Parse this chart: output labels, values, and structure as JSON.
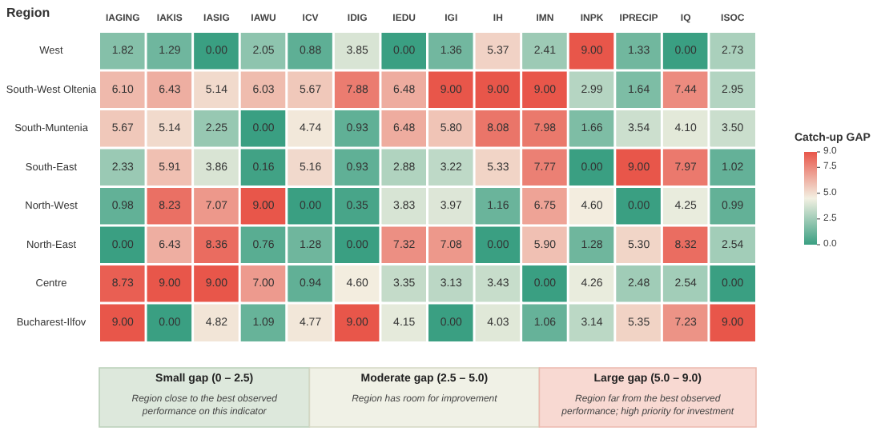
{
  "chart_data": {
    "type": "heatmap",
    "ylabel": "Region",
    "clabel": "Catch-up GAP",
    "categories": [
      "IAGING",
      "IAKIS",
      "IASIG",
      "IAWU",
      "ICV",
      "IDIG",
      "IEDU",
      "IGI",
      "IH",
      "IMN",
      "INPK",
      "IPRECIP",
      "IQ",
      "ISOC"
    ],
    "y_categories": [
      "West",
      "South-West Oltenia",
      "South-Muntenia",
      "South-East",
      "North-West",
      "North-East",
      "Centre",
      "Bucharest-Ilfov"
    ],
    "cells": [
      [
        1.82,
        1.29,
        0.0,
        2.05,
        0.88,
        3.85,
        0.0,
        1.36,
        5.37,
        2.41,
        9.0,
        1.33,
        0.0,
        2.73
      ],
      [
        6.1,
        6.43,
        5.14,
        6.03,
        5.67,
        7.88,
        6.48,
        9.0,
        9.0,
        9.0,
        2.99,
        1.64,
        7.44,
        2.95
      ],
      [
        5.67,
        5.14,
        2.25,
        0.0,
        4.74,
        0.93,
        6.48,
        5.8,
        8.08,
        7.98,
        1.66,
        3.54,
        4.1,
        3.5
      ],
      [
        2.33,
        5.91,
        3.86,
        0.16,
        5.16,
        0.93,
        2.88,
        3.22,
        5.33,
        7.77,
        0.0,
        9.0,
        7.97,
        1.02
      ],
      [
        0.98,
        8.23,
        7.07,
        9.0,
        0.0,
        0.35,
        3.83,
        3.97,
        1.16,
        6.75,
        4.6,
        0.0,
        4.25,
        0.99
      ],
      [
        0.0,
        6.43,
        8.36,
        0.76,
        1.28,
        0.0,
        7.32,
        7.08,
        0.0,
        5.9,
        1.28,
        5.3,
        8.32,
        2.54
      ],
      [
        8.73,
        9.0,
        9.0,
        7.0,
        0.94,
        4.6,
        3.35,
        3.13,
        3.43,
        0.0,
        4.26,
        2.48,
        2.54,
        0.0
      ],
      [
        9.0,
        0.0,
        4.82,
        1.09,
        4.77,
        9.0,
        4.15,
        0.0,
        4.03,
        1.06,
        3.14,
        5.35,
        7.23,
        9.0
      ]
    ],
    "cell_labels": [
      [
        "1.82",
        "1.29",
        "0.00",
        "2.05",
        "0.88",
        "3.85",
        "0.00",
        "1.36",
        "5.37",
        "2.41",
        "9.00",
        "1.33",
        "0.00",
        "2.73"
      ],
      [
        "6.10",
        "6.43",
        "5.14",
        "6.03",
        "5.67",
        "7.88",
        "6.48",
        "9.00",
        "9.00",
        "9.00",
        "2.99",
        "1.64",
        "7.44",
        "2.95"
      ],
      [
        "5.67",
        "5.14",
        "2.25",
        "0.00",
        "4.74",
        "0.93",
        "6.48",
        "5.80",
        "8.08",
        "7.98",
        "1.66",
        "3.54",
        "4.10",
        "3.50"
      ],
      [
        "2.33",
        "5.91",
        "3.86",
        "0.16",
        "5.16",
        "0.93",
        "2.88",
        "3.22",
        "5.33",
        "7.77",
        "0.00",
        "9.00",
        "7.97",
        "1.02"
      ],
      [
        "0.98",
        "8.23",
        "7.07",
        "9.00",
        "0.00",
        "0.35",
        "3.83",
        "3.97",
        "1.16",
        "6.75",
        "4.60",
        "0.00",
        "4.25",
        "0.99"
      ],
      [
        "0.00",
        "6.43",
        "8.36",
        "0.76",
        "1.28",
        "0.00",
        "7.32",
        "7.08",
        "0.00",
        "5.90",
        "1.28",
        "5.30",
        "8.32",
        "2.54"
      ],
      [
        "8.73",
        "9.00",
        "9.00",
        "7.00",
        "0.94",
        "4.60",
        "3.35",
        "3.13",
        "3.43",
        "0.00",
        "4.26",
        "2.48",
        "2.54",
        "0.00"
      ],
      [
        "9.00",
        "0.00",
        "4.82",
        "1.09",
        "4.77",
        "9.00",
        "4.15",
        "0.00",
        "4.03",
        "1.06",
        "3.14",
        "5.35",
        "7.23",
        "9.00"
      ]
    ],
    "clim": [
      0,
      9
    ],
    "cticks": [
      {
        "value": 0,
        "label": "0.0"
      },
      {
        "value": 2.5,
        "label": "2.5"
      },
      {
        "value": 5,
        "label": "5.0"
      },
      {
        "value": 7.5,
        "label": "7.5"
      },
      {
        "value": 9,
        "label": "9.0"
      }
    ],
    "data_labels": true,
    "annotations": [
      "Small gap (0 – 2.5)",
      "Region close to the best observed\nperformance on this indicator",
      "Moderate gap (2.5 – 5.0)",
      "Region has room for improvement",
      "Large gap (5.0 – 9.0)",
      "Region far from the best observed\nperformance; high priority for investment"
    ]
  }
}
